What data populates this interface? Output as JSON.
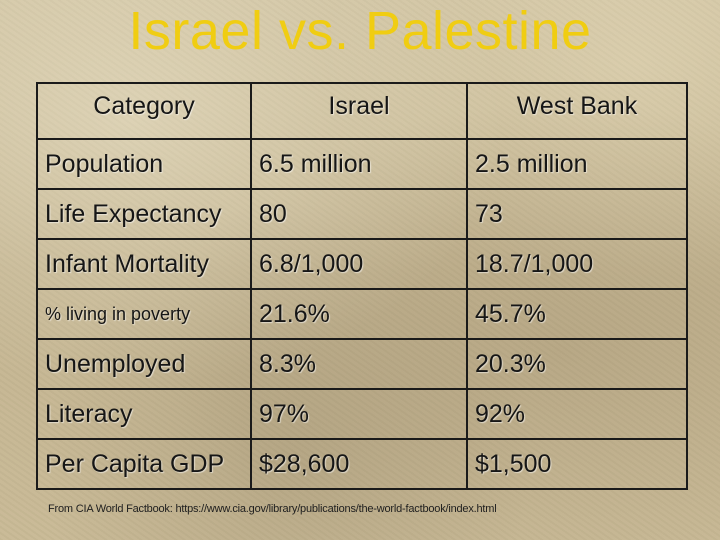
{
  "title": "Israel vs. Palestine",
  "table": {
    "headers": [
      "Category",
      "Israel",
      "West Bank"
    ],
    "rows": [
      [
        "Population",
        "6.5 million",
        "2.5 million"
      ],
      [
        "Life Expectancy",
        "80",
        "73"
      ],
      [
        "Infant Mortality",
        "6.8/1,000",
        "18.7/1,000"
      ],
      [
        "% living in poverty",
        "21.6%",
        "45.7%"
      ],
      [
        "Unemployed",
        "8.3%",
        "20.3%"
      ],
      [
        "Literacy",
        "97%",
        "92%"
      ],
      [
        "Per Capita GDP",
        "$28,600",
        "$1,500"
      ]
    ]
  },
  "footer": "From CIA World Factbook: https://www.cia.gov/library/publications/the-world-factbook/index.html",
  "colors": {
    "title": "#f0cd12",
    "text": "#161616",
    "border": "#1a1a1a",
    "background": "#c9bb98"
  }
}
